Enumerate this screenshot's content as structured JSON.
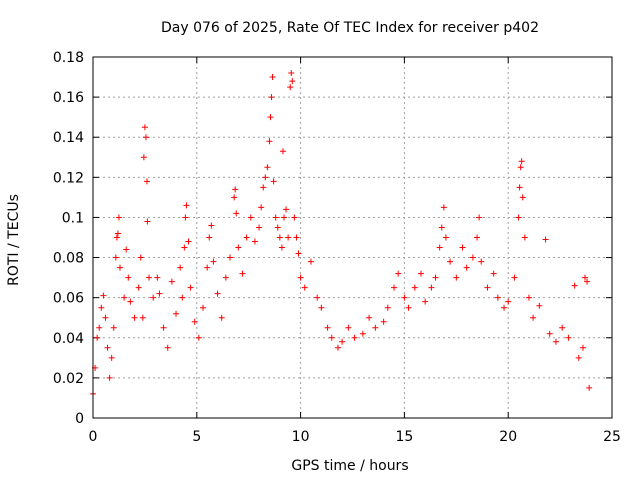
{
  "chart_data": {
    "type": "scatter",
    "title": "Day 076 of 2025, Rate Of TEC Index for receiver p402",
    "xlabel": "GPS time / hours",
    "ylabel": "ROTI / TECUs",
    "xlim": [
      0,
      25
    ],
    "ylim": [
      0,
      0.18
    ],
    "x_ticks": [
      "0",
      "5",
      "10",
      "15",
      "20",
      "25"
    ],
    "y_ticks": [
      "0",
      "0.02",
      "0.04",
      "0.06",
      "0.08",
      "0.1",
      "0.12",
      "0.14",
      "0.16",
      "0.18"
    ],
    "grid": true,
    "marker": "+",
    "color": "#ff0000",
    "series": [
      {
        "points": [
          [
            0.0,
            0.012
          ],
          [
            0.1,
            0.025
          ],
          [
            0.2,
            0.04
          ],
          [
            0.3,
            0.045
          ],
          [
            0.4,
            0.055
          ],
          [
            0.5,
            0.061
          ],
          [
            0.6,
            0.05
          ],
          [
            0.7,
            0.035
          ],
          [
            0.8,
            0.02
          ],
          [
            0.9,
            0.03
          ],
          [
            1.0,
            0.045
          ],
          [
            1.1,
            0.08
          ],
          [
            1.15,
            0.09
          ],
          [
            1.2,
            0.092
          ],
          [
            1.25,
            0.1
          ],
          [
            1.3,
            0.075
          ],
          [
            1.5,
            0.06
          ],
          [
            1.6,
            0.084
          ],
          [
            1.7,
            0.07
          ],
          [
            1.8,
            0.058
          ],
          [
            2.0,
            0.05
          ],
          [
            2.2,
            0.065
          ],
          [
            2.3,
            0.08
          ],
          [
            2.4,
            0.05
          ],
          [
            2.45,
            0.13
          ],
          [
            2.5,
            0.145
          ],
          [
            2.55,
            0.14
          ],
          [
            2.6,
            0.118
          ],
          [
            2.62,
            0.098
          ],
          [
            2.7,
            0.07
          ],
          [
            2.9,
            0.06
          ],
          [
            3.1,
            0.07
          ],
          [
            3.2,
            0.062
          ],
          [
            3.4,
            0.045
          ],
          [
            3.6,
            0.035
          ],
          [
            3.8,
            0.068
          ],
          [
            4.0,
            0.052
          ],
          [
            4.2,
            0.075
          ],
          [
            4.3,
            0.06
          ],
          [
            4.4,
            0.085
          ],
          [
            4.45,
            0.1
          ],
          [
            4.5,
            0.106
          ],
          [
            4.6,
            0.088
          ],
          [
            4.7,
            0.065
          ],
          [
            4.9,
            0.048
          ],
          [
            5.1,
            0.04
          ],
          [
            5.3,
            0.055
          ],
          [
            5.5,
            0.075
          ],
          [
            5.6,
            0.09
          ],
          [
            5.7,
            0.096
          ],
          [
            5.8,
            0.078
          ],
          [
            6.0,
            0.062
          ],
          [
            6.2,
            0.05
          ],
          [
            6.4,
            0.07
          ],
          [
            6.6,
            0.08
          ],
          [
            6.8,
            0.11
          ],
          [
            6.85,
            0.114
          ],
          [
            6.9,
            0.102
          ],
          [
            7.0,
            0.085
          ],
          [
            7.2,
            0.072
          ],
          [
            7.4,
            0.09
          ],
          [
            7.6,
            0.1
          ],
          [
            7.8,
            0.088
          ],
          [
            8.0,
            0.095
          ],
          [
            8.1,
            0.105
          ],
          [
            8.2,
            0.115
          ],
          [
            8.3,
            0.12
          ],
          [
            8.4,
            0.125
          ],
          [
            8.5,
            0.138
          ],
          [
            8.55,
            0.15
          ],
          [
            8.6,
            0.16
          ],
          [
            8.65,
            0.17
          ],
          [
            8.7,
            0.118
          ],
          [
            8.8,
            0.1
          ],
          [
            8.9,
            0.095
          ],
          [
            9.0,
            0.09
          ],
          [
            9.1,
            0.085
          ],
          [
            9.15,
            0.133
          ],
          [
            9.2,
            0.1
          ],
          [
            9.3,
            0.104
          ],
          [
            9.4,
            0.09
          ],
          [
            9.5,
            0.165
          ],
          [
            9.55,
            0.172
          ],
          [
            9.6,
            0.168
          ],
          [
            9.7,
            0.1
          ],
          [
            9.8,
            0.09
          ],
          [
            9.9,
            0.082
          ],
          [
            10.0,
            0.07
          ],
          [
            10.2,
            0.065
          ],
          [
            10.5,
            0.078
          ],
          [
            10.8,
            0.06
          ],
          [
            11.0,
            0.055
          ],
          [
            11.3,
            0.045
          ],
          [
            11.5,
            0.04
          ],
          [
            11.8,
            0.035
          ],
          [
            12.0,
            0.038
          ],
          [
            12.3,
            0.045
          ],
          [
            12.6,
            0.04
          ],
          [
            13.0,
            0.042
          ],
          [
            13.3,
            0.05
          ],
          [
            13.6,
            0.045
          ],
          [
            14.0,
            0.048
          ],
          [
            14.2,
            0.055
          ],
          [
            14.5,
            0.065
          ],
          [
            14.7,
            0.072
          ],
          [
            15.0,
            0.06
          ],
          [
            15.2,
            0.055
          ],
          [
            15.5,
            0.065
          ],
          [
            15.8,
            0.072
          ],
          [
            16.0,
            0.058
          ],
          [
            16.3,
            0.065
          ],
          [
            16.5,
            0.07
          ],
          [
            16.7,
            0.085
          ],
          [
            16.8,
            0.095
          ],
          [
            16.9,
            0.105
          ],
          [
            17.0,
            0.09
          ],
          [
            17.2,
            0.078
          ],
          [
            17.5,
            0.07
          ],
          [
            17.8,
            0.085
          ],
          [
            18.0,
            0.075
          ],
          [
            18.3,
            0.08
          ],
          [
            18.5,
            0.09
          ],
          [
            18.6,
            0.1
          ],
          [
            18.7,
            0.078
          ],
          [
            19.0,
            0.065
          ],
          [
            19.3,
            0.072
          ],
          [
            19.5,
            0.06
          ],
          [
            19.8,
            0.055
          ],
          [
            20.0,
            0.058
          ],
          [
            20.3,
            0.07
          ],
          [
            20.5,
            0.1
          ],
          [
            20.55,
            0.115
          ],
          [
            20.6,
            0.125
          ],
          [
            20.65,
            0.128
          ],
          [
            20.7,
            0.11
          ],
          [
            20.8,
            0.09
          ],
          [
            21.0,
            0.06
          ],
          [
            21.2,
            0.05
          ],
          [
            21.5,
            0.056
          ],
          [
            21.8,
            0.089
          ],
          [
            22.0,
            0.042
          ],
          [
            22.3,
            0.038
          ],
          [
            22.6,
            0.045
          ],
          [
            22.9,
            0.04
          ],
          [
            23.2,
            0.066
          ],
          [
            23.4,
            0.03
          ],
          [
            23.6,
            0.035
          ],
          [
            23.7,
            0.07
          ],
          [
            23.8,
            0.068
          ],
          [
            23.9,
            0.015
          ]
        ]
      }
    ]
  }
}
